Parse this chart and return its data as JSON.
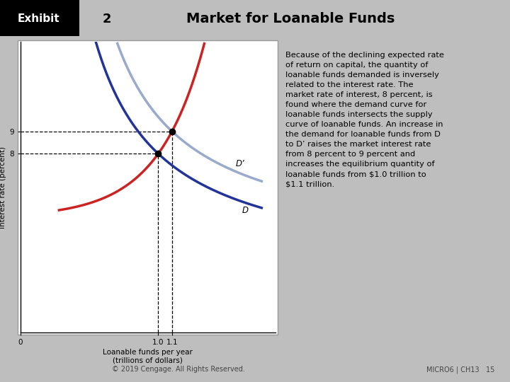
{
  "title": "Market for Loanable Funds",
  "exhibit_label": "Exhibit",
  "exhibit_number": "2",
  "header_bg": "#00BBEE",
  "slide_bg": "#BEBEBE",
  "chart_bg": "#FFFFFF",
  "chart_border": "#AAAAAA",
  "ylabel": "Interest rate (percent)",
  "xlabel": "Loanable funds per year\n(trillions of dollars)",
  "eq1_x": 1.0,
  "eq1_y": 8,
  "eq2_x": 1.1,
  "eq2_y": 9,
  "supply_color": "#CC2222",
  "demand_color": "#223399",
  "demand_prime_color": "#99AACC",
  "footer_text": "© 2019 Cengage. All Rights Reserved.",
  "footer_right": "MICRO6 | CH13   15",
  "body_text": "Because of the declining expected rate\nof return on capital, the quantity of\nloanable funds demanded is inversely\nrelated to the interest rate. The\nmarket rate of interest, 8 percent, is\nfound where the demand curve for\nloanable funds intersects the supply\ncurve of loanable funds. An increase in\nthe demand for loanable funds from D\nto D’ raises the market interest rate\nfrom 8 percent to 9 percent and\nincreases the equilibrium quantity of\nloanable funds from $1.0 trillion to\n$1.1 trillion.",
  "xlim": [
    0,
    1.85
  ],
  "ylim": [
    0,
    13
  ]
}
